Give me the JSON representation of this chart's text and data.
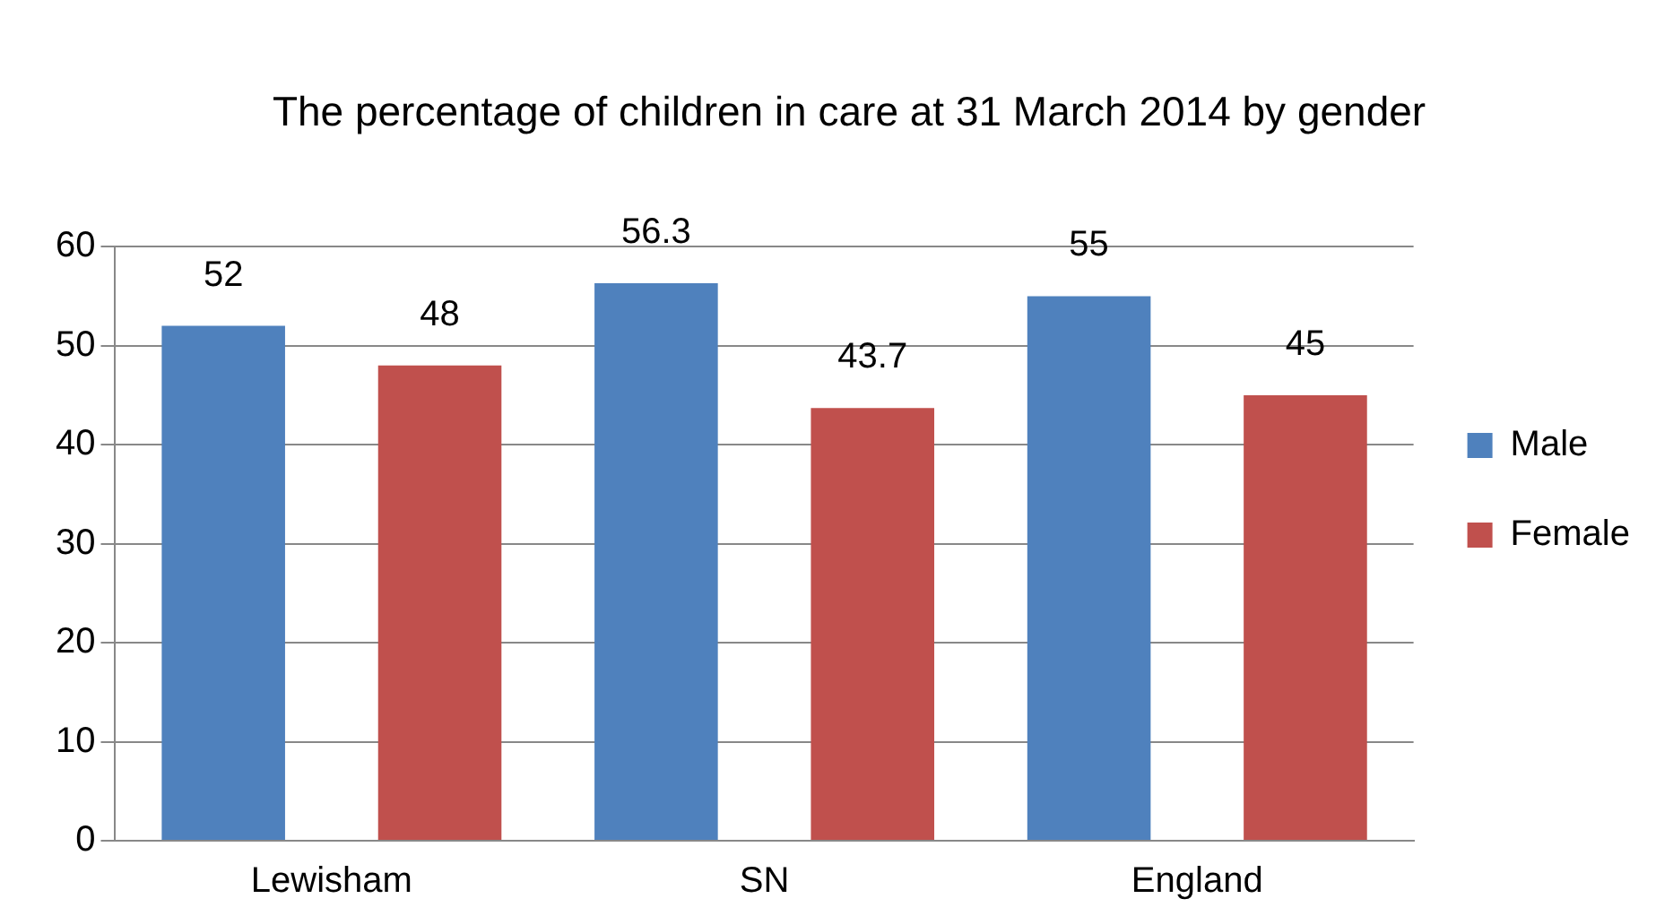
{
  "chart_data": {
    "type": "bar",
    "title": "The percentage of children in care at 31 March 2014 by gender",
    "categories": [
      "Lewisham",
      "SN",
      "England"
    ],
    "series": [
      {
        "name": "Male",
        "color": "#4f81bd",
        "values": [
          52,
          56.3,
          55
        ]
      },
      {
        "name": "Female",
        "color": "#c0504d",
        "values": [
          48,
          43.7,
          45
        ]
      }
    ],
    "ylim": [
      0,
      60
    ],
    "yticks": [
      0,
      10,
      20,
      30,
      40,
      50,
      60
    ],
    "grid": "y",
    "legend": "right",
    "data_labels": true
  }
}
